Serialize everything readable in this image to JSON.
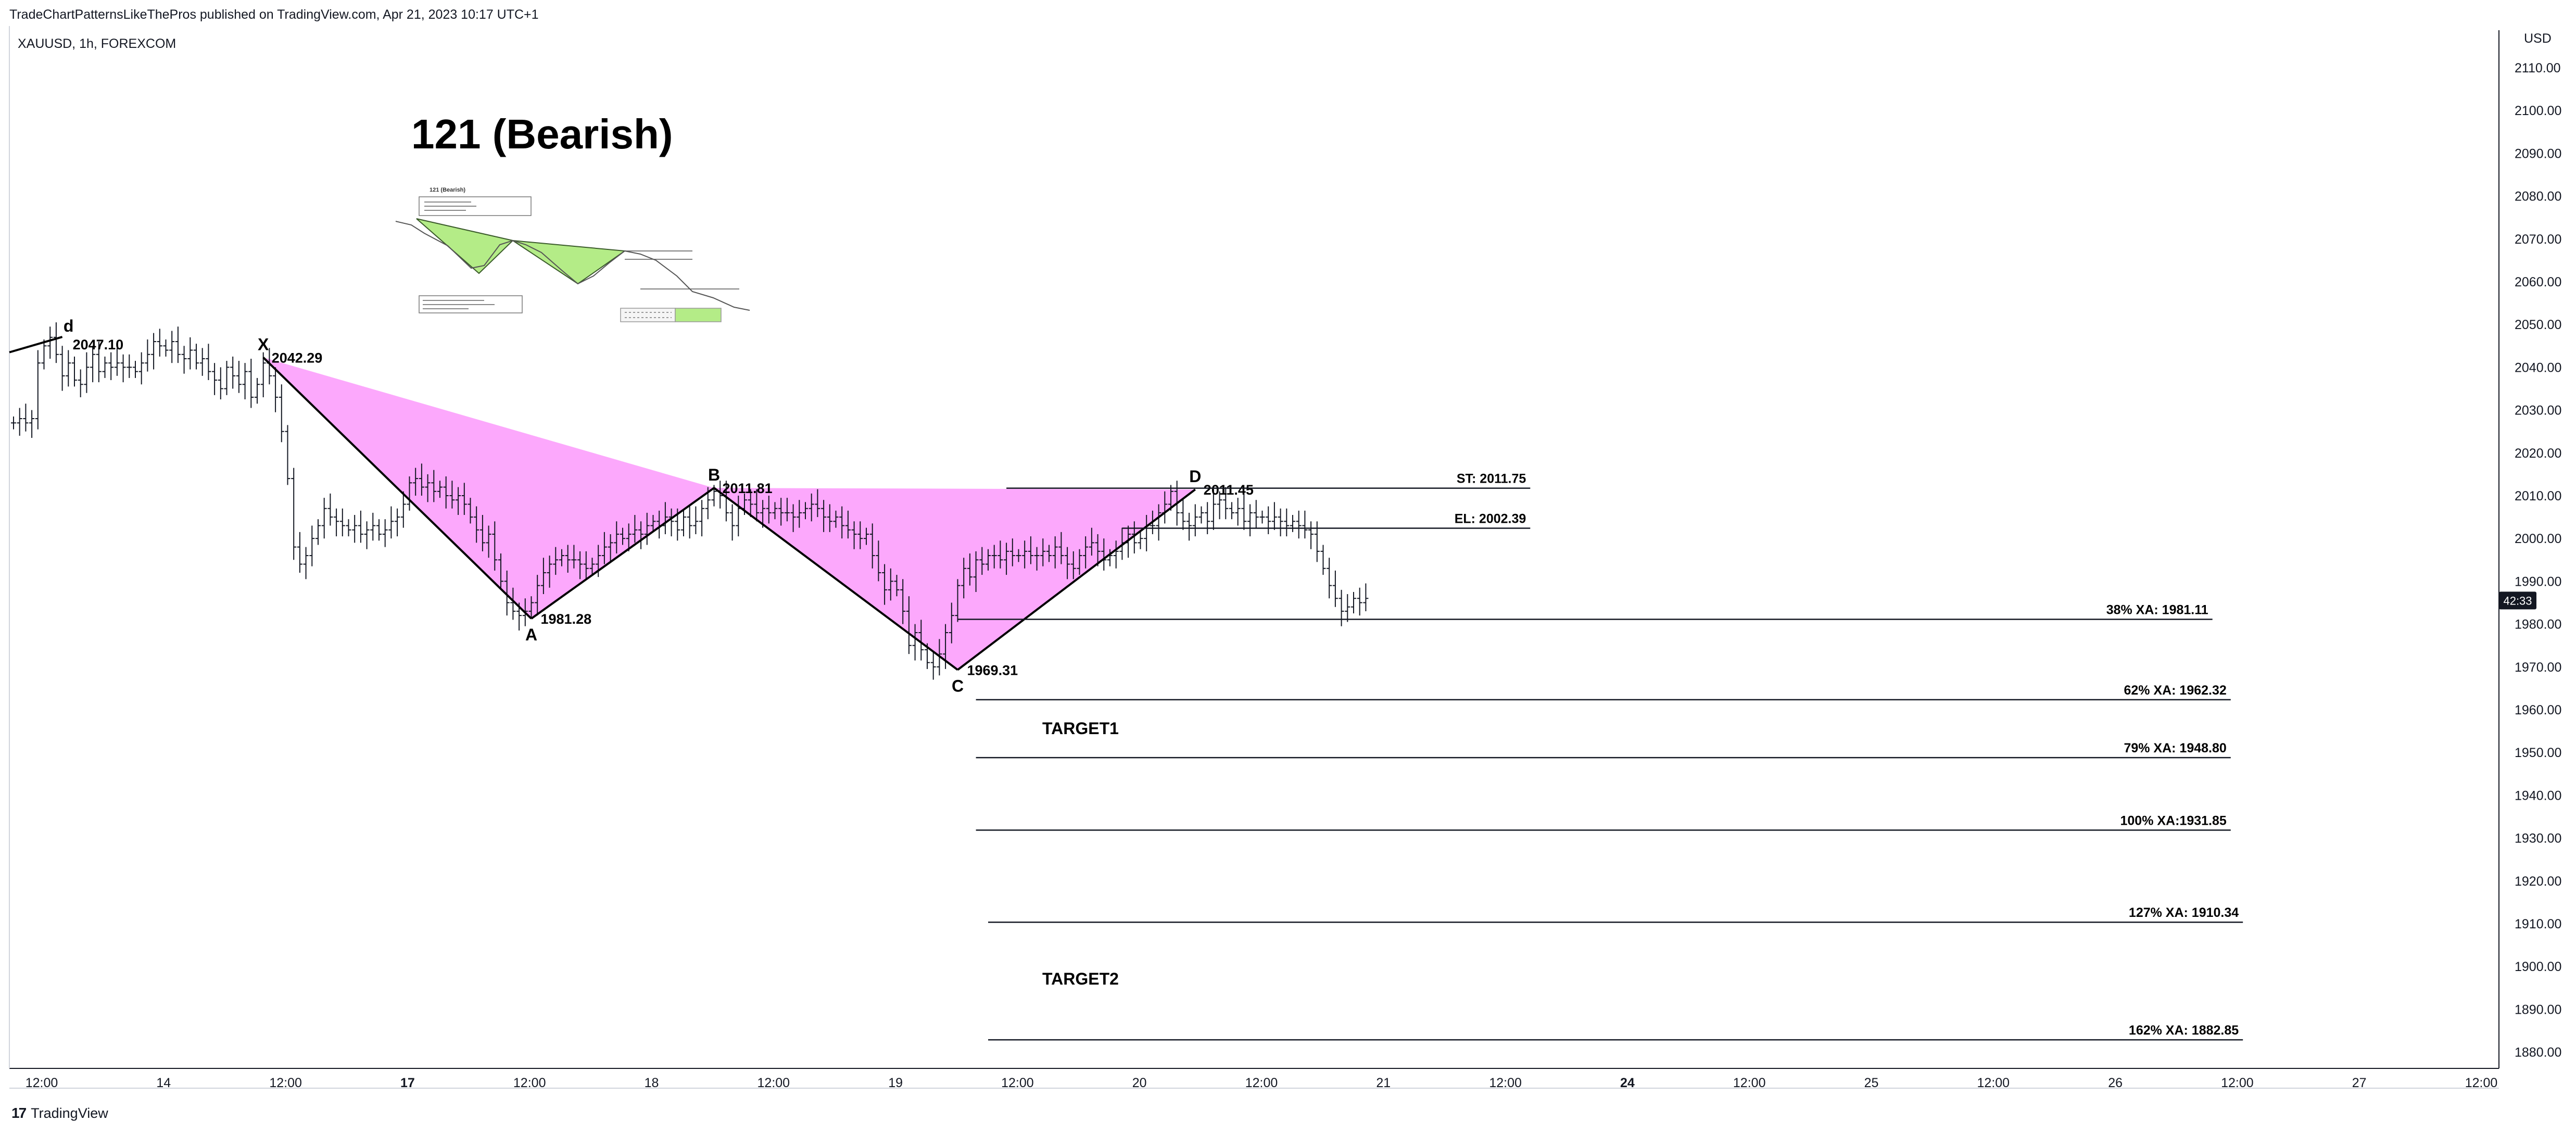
{
  "header": {
    "published_text": "TradeChartPatternsLikeThePros published on TradingView.com, Apr 21, 2023 10:17 UTC+1",
    "symbol_text": "XAUUSD, 1h, FOREXCOM"
  },
  "footer": {
    "brand_logo": "17",
    "brand_text": "TradingView"
  },
  "colors": {
    "pattern_fill": "#fca8fc",
    "line": "#000000",
    "price_badge": "#131722"
  },
  "chart_data": {
    "type": "candlestick",
    "title": "121 (Bearish)",
    "currency": "USD",
    "ylim": [
      1875,
      2115
    ],
    "y_ticks": [
      "2110.00",
      "2100.00",
      "2090.00",
      "2080.00",
      "2070.00",
      "2060.00",
      "2050.00",
      "2040.00",
      "2030.00",
      "2020.00",
      "2010.00",
      "2000.00",
      "1990.00",
      "1980.00",
      "1970.00",
      "1960.00",
      "1950.00",
      "1940.00",
      "1930.00",
      "1920.00",
      "1910.00",
      "1900.00",
      "1890.00",
      "1880.00"
    ],
    "x_ticks": [
      "12:00",
      "14",
      "12:00",
      "17",
      "12:00",
      "18",
      "12:00",
      "19",
      "12:00",
      "20",
      "12:00",
      "21",
      "12:00",
      "24",
      "12:00",
      "25",
      "12:00",
      "26",
      "12:00",
      "27",
      "12:00"
    ],
    "current_price_label": "42:33",
    "current_price": 1985.5,
    "pattern": {
      "points": [
        {
          "label": "X",
          "value": "2042.29",
          "price": 2042.29,
          "bar": 41
        },
        {
          "label": "A",
          "value": "1981.28",
          "price": 1981.28,
          "bar": 85
        },
        {
          "label": "B",
          "value": "2011.81",
          "price": 2011.81,
          "bar": 115
        },
        {
          "label": "C",
          "value": "1969.31",
          "price": 1969.31,
          "bar": 155
        },
        {
          "label": "D",
          "value": "2011.45",
          "price": 2011.45,
          "bar": 194
        }
      ],
      "pre_point": {
        "label": "d",
        "value": "2047.10",
        "price": 2047.1,
        "bar": 8
      }
    },
    "levels": [
      {
        "label": "ST: 2011.75",
        "price": 2011.75,
        "start_bar": 163,
        "end_bar": 249
      },
      {
        "label": "EL: 2002.39",
        "price": 2002.39,
        "start_bar": 182,
        "end_bar": 249
      },
      {
        "label": "38% XA: 1981.11",
        "price": 1981.11,
        "start_bar": 155,
        "end_bar": 361
      },
      {
        "label": "62% XA: 1962.32",
        "price": 1962.32,
        "start_bar": 158,
        "end_bar": 364
      },
      {
        "label": "79% XA: 1948.80",
        "price": 1948.8,
        "start_bar": 158,
        "end_bar": 364
      },
      {
        "label": "100% XA:1931.85",
        "price": 1931.85,
        "start_bar": 158,
        "end_bar": 364
      },
      {
        "label": "127% XA: 1910.34",
        "price": 1910.34,
        "start_bar": 160,
        "end_bar": 366
      },
      {
        "label": "162% XA: 1882.85",
        "price": 1882.85,
        "start_bar": 160,
        "end_bar": 366
      }
    ],
    "targets": [
      {
        "label": "TARGET1",
        "price": 1955.5
      },
      {
        "label": "TARGET2",
        "price": 1897
      }
    ],
    "candle_closes": [
      2027,
      2028,
      2027,
      2028,
      2041,
      2045,
      2047,
      2043,
      2038,
      2041,
      2037,
      2036,
      2040,
      2043,
      2039,
      2041,
      2040,
      2041,
      2040,
      2040,
      2039,
      2041,
      2043,
      2046,
      2045,
      2044,
      2046,
      2043,
      2042,
      2044,
      2041,
      2042,
      2039,
      2037,
      2035,
      2040,
      2038,
      2036,
      2039,
      2033,
      2036,
      2041,
      2038,
      2033,
      2025,
      2014,
      1998,
      1994,
      1996,
      2000,
      2003,
      2007,
      2005,
      2004,
      2003,
      2002,
      2003,
      2001,
      2002,
      2003,
      2001,
      2002,
      2004,
      2005,
      2008,
      2013,
      2014,
      2012,
      2013,
      2011,
      2012,
      2010,
      2009,
      2010,
      2008,
      2005,
      2002,
      1999,
      2001,
      1995,
      1990,
      1985,
      1983,
      1982,
      1983,
      1985,
      1989,
      1992,
      1994,
      1995,
      1996,
      1995,
      1995,
      1994,
      1993,
      1994,
      1996,
      1998,
      1999,
      2001,
      2000,
      2001,
      2002,
      2001,
      2003,
      2004,
      2003,
      2005,
      2004,
      2002,
      2005,
      2003,
      2004,
      2007,
      2009,
      2011,
      2010,
      2006,
      2003,
      2007,
      2009,
      2008,
      2006,
      2007,
      2006,
      2007,
      2006,
      2006,
      2005,
      2006,
      2007,
      2008,
      2007,
      2005,
      2004,
      2005,
      2003,
      2002,
      2001,
      2000,
      2001,
      1996,
      1992,
      1988,
      1990,
      1988,
      1983,
      1975,
      1978,
      1974,
      1971,
      1970,
      1973,
      1978,
      1982,
      1989,
      1993,
      1991,
      1995,
      1994,
      1996,
      1996,
      1995,
      1997,
      1996,
      1996,
      1997,
      1996,
      1996,
      1997,
      1996,
      1998,
      1996,
      1994,
      1993,
      1996,
      1998,
      1999,
      1997,
      1995,
      1996,
      1997,
      1999,
      2001,
      1999,
      2000,
      2003,
      2003,
      2006,
      2008,
      2011,
      2006,
      2004,
      2003,
      2005,
      2006,
      2004,
      2008,
      2009,
      2007,
      2006,
      2007,
      2004,
      2006,
      2005,
      2005,
      2004,
      2005,
      2004,
      2003,
      2004,
      2003,
      2002,
      2001,
      1997,
      1993,
      1989,
      1986,
      1983,
      1984,
      1986,
      1985,
      1986
    ]
  }
}
